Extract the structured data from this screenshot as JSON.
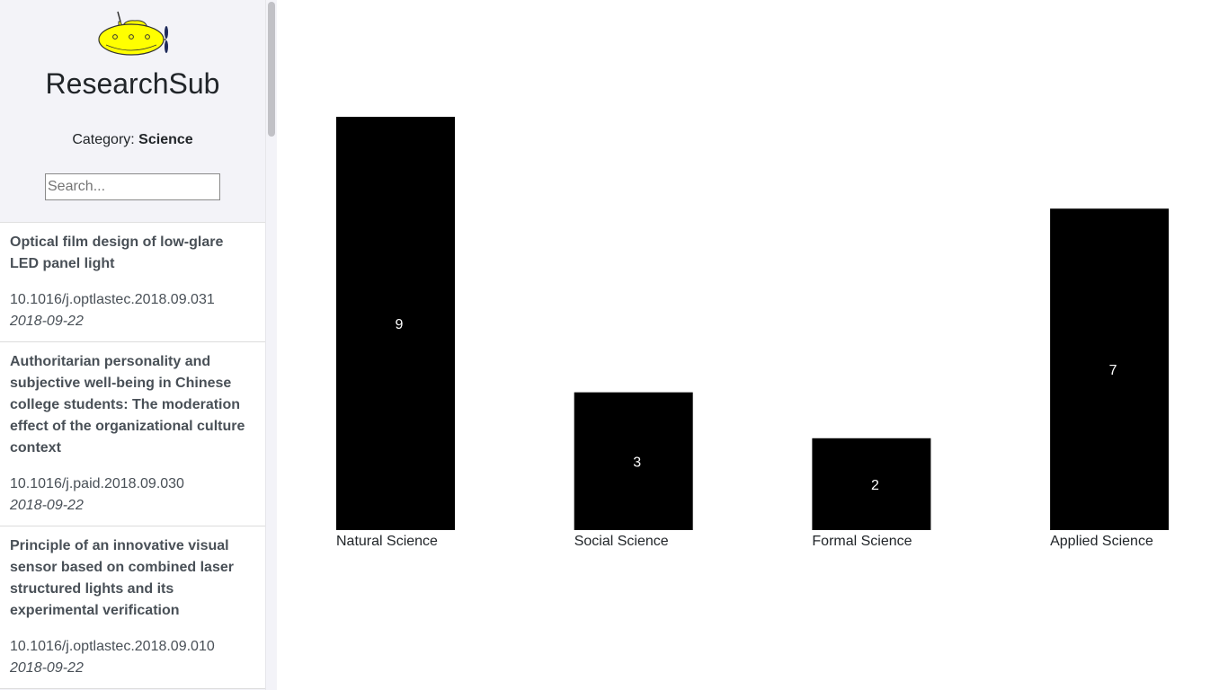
{
  "app": {
    "title": "ResearchSub",
    "category_label": "Category:",
    "category_value": "Science",
    "logo_icon": "yellow-submarine-icon"
  },
  "search": {
    "placeholder": "Search...",
    "value": ""
  },
  "papers": [
    {
      "title": "Optical film design of low-glare LED panel light",
      "doi": "10.1016/j.optlastec.2018.09.031",
      "date": "2018-09-22"
    },
    {
      "title": "Authoritarian personality and subjective well-being in Chinese college students: The moderation effect of the organizational culture context",
      "doi": "10.1016/j.paid.2018.09.030",
      "date": "2018-09-22"
    },
    {
      "title": "Principle of an innovative visual sensor based on combined laser structured lights and its experimental verification",
      "doi": "10.1016/j.optlastec.2018.09.010",
      "date": "2018-09-22"
    }
  ],
  "chart_data": {
    "type": "bar",
    "categories": [
      "Natural Science",
      "Social Science",
      "Formal Science",
      "Applied Science"
    ],
    "values": [
      9,
      3,
      2,
      7
    ],
    "title": "",
    "xlabel": "",
    "ylabel": "",
    "ylim": [
      0,
      9
    ],
    "grid": false,
    "bar_color": "#000000",
    "value_label_color": "#ffffff"
  }
}
